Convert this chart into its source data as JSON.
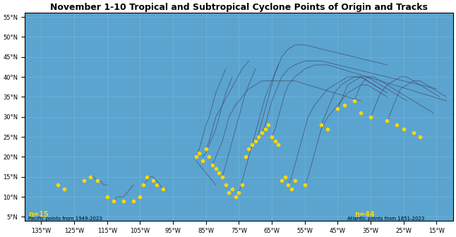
{
  "title": "November 1-10 Tropical and Subtropical Cyclone Points of Origin and Tracks",
  "lon_min": -140,
  "lon_max": -10,
  "lat_min": 4,
  "lat_max": 56,
  "ocean_color": "#5ba4cf",
  "land_color": "#c8c8c8",
  "grid_color": "#7fbfdf",
  "track_color": "#404060",
  "point_color": "#FFD700",
  "background_color": "#5ba4cf",
  "xlabel_color": "black",
  "n_pacific": 15,
  "n_atlantic": 44,
  "pacific_label": "Pacific points from 1949-2023",
  "atlantic_label": "Atlantic points from 1851-2023",
  "xticks": [
    -135,
    -125,
    -115,
    -105,
    -95,
    -85,
    -75,
    -65,
    -55,
    -45,
    -35,
    -25,
    -15
  ],
  "yticks": [
    5,
    10,
    15,
    20,
    25,
    30,
    35,
    40,
    45,
    50,
    55
  ],
  "xlabels": [
    "135°W",
    "125°W",
    "115°W",
    "105°W",
    "95°W",
    "85°W",
    "75°W",
    "65°W",
    "55°W",
    "45°W",
    "35°W",
    "25°W",
    "15°W"
  ],
  "ylabels": [
    "5°N",
    "10°N",
    "15°N",
    "20°N",
    "25°N",
    "30°N",
    "35°N",
    "40°N",
    "45°N",
    "50°N",
    "55°N"
  ],
  "pacific_points": [
    [
      -130,
      13
    ],
    [
      -128,
      12
    ],
    [
      -122,
      14
    ],
    [
      -120,
      15
    ],
    [
      -118,
      14
    ],
    [
      -115,
      10
    ],
    [
      -113,
      9
    ],
    [
      -110,
      9
    ],
    [
      -107,
      9
    ],
    [
      -105,
      10
    ],
    [
      -104,
      13
    ],
    [
      -103,
      15
    ],
    [
      -101,
      14
    ],
    [
      -100,
      13
    ],
    [
      -98,
      12
    ]
  ],
  "atlantic_points": [
    [
      -88,
      20
    ],
    [
      -87,
      21
    ],
    [
      -86,
      19
    ],
    [
      -85,
      22
    ],
    [
      -84,
      20
    ],
    [
      -83,
      18
    ],
    [
      -82,
      17
    ],
    [
      -81,
      16
    ],
    [
      -80,
      15
    ],
    [
      -79,
      13
    ],
    [
      -78,
      11
    ],
    [
      -77,
      12
    ],
    [
      -76,
      10
    ],
    [
      -75,
      11
    ],
    [
      -74,
      13
    ],
    [
      -73,
      20
    ],
    [
      -72,
      22
    ],
    [
      -71,
      23
    ],
    [
      -70,
      24
    ],
    [
      -69,
      25
    ],
    [
      -68,
      26
    ],
    [
      -67,
      27
    ],
    [
      -66,
      28
    ],
    [
      -65,
      25
    ],
    [
      -64,
      24
    ],
    [
      -63,
      23
    ],
    [
      -62,
      14
    ],
    [
      -61,
      15
    ],
    [
      -60,
      13
    ],
    [
      -59,
      12
    ],
    [
      -58,
      14
    ],
    [
      -55,
      13
    ],
    [
      -50,
      28
    ],
    [
      -48,
      27
    ],
    [
      -45,
      32
    ],
    [
      -43,
      33
    ],
    [
      -40,
      34
    ],
    [
      -38,
      31
    ],
    [
      -35,
      30
    ],
    [
      -30,
      29
    ],
    [
      -27,
      28
    ],
    [
      -25,
      27
    ],
    [
      -22,
      26
    ],
    [
      -20,
      25
    ]
  ],
  "tracks": [
    [
      [
        -88,
        20
      ],
      [
        -87,
        22
      ],
      [
        -86,
        25
      ],
      [
        -85,
        28
      ],
      [
        -84,
        30
      ],
      [
        -83,
        33
      ],
      [
        -82,
        36
      ],
      [
        -81,
        38
      ],
      [
        -80,
        40
      ],
      [
        -79,
        42
      ]
    ],
    [
      [
        -85,
        22
      ],
      [
        -84,
        24
      ],
      [
        -83,
        27
      ],
      [
        -82,
        30
      ],
      [
        -80,
        33
      ],
      [
        -78,
        36
      ],
      [
        -76,
        39
      ],
      [
        -74,
        42
      ],
      [
        -72,
        44
      ]
    ],
    [
      [
        -80,
        15
      ],
      [
        -79,
        18
      ],
      [
        -78,
        21
      ],
      [
        -77,
        24
      ],
      [
        -76,
        27
      ],
      [
        -75,
        30
      ],
      [
        -74,
        33
      ],
      [
        -73,
        36
      ],
      [
        -72,
        38
      ],
      [
        -71,
        40
      ],
      [
        -70,
        42
      ]
    ],
    [
      [
        -75,
        11
      ],
      [
        -74,
        14
      ],
      [
        -73,
        17
      ],
      [
        -72,
        20
      ],
      [
        -71,
        23
      ],
      [
        -70,
        26
      ],
      [
        -69,
        29
      ],
      [
        -68,
        32
      ],
      [
        -67,
        35
      ],
      [
        -66,
        37
      ],
      [
        -65,
        39
      ],
      [
        -64,
        41
      ],
      [
        -63,
        43
      ]
    ],
    [
      [
        -70,
        24
      ],
      [
        -69,
        26
      ],
      [
        -68,
        29
      ],
      [
        -67,
        32
      ],
      [
        -66,
        35
      ],
      [
        -65,
        38
      ],
      [
        -64,
        41
      ],
      [
        -63,
        43
      ],
      [
        -62,
        45
      ],
      [
        -60,
        47
      ],
      [
        -58,
        48
      ],
      [
        -55,
        48
      ],
      [
        -50,
        47
      ],
      [
        -45,
        46
      ],
      [
        -40,
        45
      ],
      [
        -35,
        44
      ],
      [
        -30,
        43
      ]
    ],
    [
      [
        -68,
        26
      ],
      [
        -67,
        28
      ],
      [
        -66,
        31
      ],
      [
        -65,
        34
      ],
      [
        -64,
        36
      ],
      [
        -63,
        38
      ],
      [
        -62,
        40
      ],
      [
        -60,
        42
      ],
      [
        -58,
        43
      ],
      [
        -55,
        44
      ],
      [
        -50,
        44
      ],
      [
        -45,
        43
      ],
      [
        -40,
        42
      ],
      [
        -35,
        41
      ],
      [
        -30,
        40
      ],
      [
        -25,
        39
      ],
      [
        -20,
        38
      ],
      [
        -15,
        37
      ]
    ],
    [
      [
        -65,
        25
      ],
      [
        -64,
        27
      ],
      [
        -63,
        30
      ],
      [
        -62,
        33
      ],
      [
        -61,
        36
      ],
      [
        -60,
        38
      ],
      [
        -58,
        40
      ],
      [
        -55,
        42
      ],
      [
        -52,
        43
      ],
      [
        -48,
        43
      ],
      [
        -44,
        42
      ],
      [
        -40,
        41
      ],
      [
        -36,
        40
      ],
      [
        -32,
        39
      ],
      [
        -28,
        38
      ],
      [
        -24,
        37
      ],
      [
        -20,
        36
      ],
      [
        -16,
        35
      ],
      [
        -12,
        34
      ]
    ],
    [
      [
        -60,
        13
      ],
      [
        -59,
        15
      ],
      [
        -58,
        18
      ],
      [
        -57,
        21
      ],
      [
        -56,
        24
      ],
      [
        -55,
        27
      ],
      [
        -54,
        30
      ],
      [
        -52,
        33
      ],
      [
        -50,
        35
      ],
      [
        -48,
        37
      ],
      [
        -46,
        38
      ],
      [
        -44,
        39
      ],
      [
        -42,
        40
      ],
      [
        -40,
        40
      ],
      [
        -38,
        40
      ],
      [
        -36,
        39
      ],
      [
        -34,
        38
      ],
      [
        -32,
        37
      ]
    ],
    [
      [
        -55,
        13
      ],
      [
        -54,
        15
      ],
      [
        -53,
        18
      ],
      [
        -52,
        21
      ],
      [
        -51,
        24
      ],
      [
        -50,
        27
      ],
      [
        -48,
        30
      ],
      [
        -46,
        32
      ],
      [
        -44,
        34
      ],
      [
        -42,
        36
      ],
      [
        -40,
        37
      ],
      [
        -38,
        38
      ],
      [
        -36,
        38
      ],
      [
        -34,
        37
      ],
      [
        -32,
        36
      ],
      [
        -30,
        35
      ]
    ],
    [
      [
        -50,
        28
      ],
      [
        -49,
        30
      ],
      [
        -48,
        32
      ],
      [
        -47,
        34
      ],
      [
        -46,
        36
      ],
      [
        -44,
        38
      ],
      [
        -42,
        39
      ],
      [
        -40,
        40
      ],
      [
        -38,
        40
      ],
      [
        -36,
        39
      ],
      [
        -34,
        38
      ],
      [
        -32,
        37
      ],
      [
        -30,
        36
      ]
    ],
    [
      [
        -45,
        32
      ],
      [
        -44,
        34
      ],
      [
        -43,
        36
      ],
      [
        -42,
        38
      ],
      [
        -40,
        39
      ],
      [
        -38,
        40
      ],
      [
        -36,
        40
      ],
      [
        -34,
        39
      ],
      [
        -32,
        38
      ],
      [
        -30,
        37
      ],
      [
        -28,
        36
      ],
      [
        -26,
        35
      ],
      [
        -24,
        34
      ]
    ],
    [
      [
        -40,
        34
      ],
      [
        -39,
        36
      ],
      [
        -38,
        38
      ],
      [
        -37,
        39
      ],
      [
        -36,
        40
      ],
      [
        -34,
        40
      ],
      [
        -32,
        39
      ],
      [
        -30,
        38
      ],
      [
        -28,
        37
      ],
      [
        -26,
        36
      ],
      [
        -24,
        35
      ],
      [
        -22,
        34
      ],
      [
        -20,
        33
      ],
      [
        -18,
        32
      ],
      [
        -16,
        31
      ]
    ],
    [
      [
        -35,
        30
      ],
      [
        -34,
        32
      ],
      [
        -33,
        34
      ],
      [
        -32,
        36
      ],
      [
        -30,
        38
      ],
      [
        -28,
        39
      ],
      [
        -26,
        40
      ],
      [
        -24,
        40
      ],
      [
        -22,
        39
      ],
      [
        -20,
        38
      ],
      [
        -18,
        37
      ],
      [
        -16,
        36
      ],
      [
        -14,
        35
      ]
    ],
    [
      [
        -30,
        29
      ],
      [
        -29,
        31
      ],
      [
        -28,
        33
      ],
      [
        -27,
        35
      ],
      [
        -26,
        37
      ],
      [
        -24,
        38
      ],
      [
        -22,
        39
      ],
      [
        -20,
        39
      ],
      [
        -18,
        38
      ],
      [
        -16,
        37
      ],
      [
        -14,
        36
      ],
      [
        -12,
        35
      ]
    ],
    [
      [
        -83,
        18
      ],
      [
        -82,
        20
      ],
      [
        -81,
        22
      ],
      [
        -80,
        24
      ],
      [
        -79,
        27
      ],
      [
        -78,
        30
      ],
      [
        -76,
        33
      ],
      [
        -74,
        35
      ],
      [
        -72,
        37
      ],
      [
        -70,
        38
      ],
      [
        -68,
        39
      ],
      [
        -65,
        39
      ],
      [
        -62,
        39
      ],
      [
        -58,
        39
      ],
      [
        -54,
        38
      ],
      [
        -50,
        37
      ],
      [
        -46,
        36
      ],
      [
        -42,
        35
      ],
      [
        -38,
        34
      ]
    ],
    [
      [
        -104,
        13
      ],
      [
        -103,
        14
      ],
      [
        -102,
        15
      ],
      [
        -101,
        15
      ],
      [
        -100,
        14
      ],
      [
        -99,
        13
      ],
      [
        -98,
        12
      ],
      [
        -97,
        12
      ]
    ],
    [
      [
        -120,
        15
      ],
      [
        -119,
        15
      ],
      [
        -118,
        14
      ],
      [
        -117,
        14
      ],
      [
        -116,
        13
      ],
      [
        -115,
        13
      ]
    ],
    [
      [
        -113,
        9
      ],
      [
        -112,
        10
      ],
      [
        -111,
        10
      ],
      [
        -110,
        10
      ],
      [
        -109,
        11
      ],
      [
        -108,
        12
      ],
      [
        -107,
        13
      ]
    ],
    [
      [
        -88,
        19
      ],
      [
        -87,
        18
      ],
      [
        -86,
        17
      ],
      [
        -85,
        16
      ],
      [
        -84,
        15
      ],
      [
        -83,
        14
      ],
      [
        -82,
        13
      ]
    ],
    [
      [
        -86,
        20
      ],
      [
        -85,
        21
      ],
      [
        -84,
        23
      ],
      [
        -83,
        25
      ],
      [
        -82,
        27
      ],
      [
        -81,
        30
      ],
      [
        -80,
        33
      ],
      [
        -79,
        36
      ],
      [
        -78,
        38
      ],
      [
        -77,
        40
      ]
    ]
  ]
}
